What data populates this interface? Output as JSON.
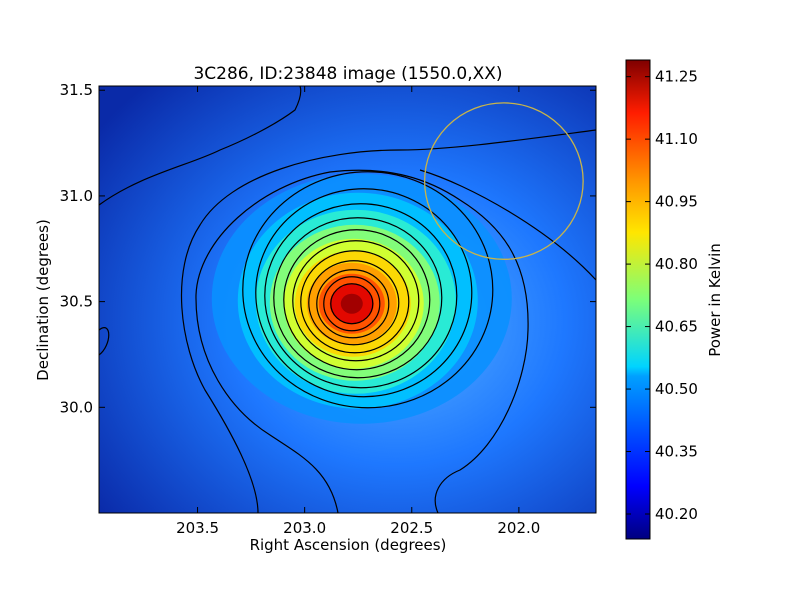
{
  "chart_data": {
    "type": "heatmap",
    "title": "3C286, ID:23848 image (1550.0,XX)",
    "xlabel": "Right Ascension (degrees)",
    "ylabel": "Declination (degrees)",
    "xlim": [
      203.96,
      201.64
    ],
    "ylim": [
      29.5,
      31.52
    ],
    "x_ticks": [
      {
        "value": 203.5,
        "label": "203.5"
      },
      {
        "value": 203.0,
        "label": "203.0"
      },
      {
        "value": 202.5,
        "label": "202.5"
      },
      {
        "value": 202.0,
        "label": "202.0"
      }
    ],
    "y_ticks": [
      {
        "value": 30.0,
        "label": "30.0"
      },
      {
        "value": 30.5,
        "label": "30.5"
      },
      {
        "value": 31.0,
        "label": "31.0"
      },
      {
        "value": 31.5,
        "label": "31.5"
      }
    ],
    "colorbar": {
      "label": "Power in Kelvin",
      "range": [
        40.14,
        41.29
      ],
      "ticks": [
        {
          "value": 40.2,
          "label": "40.20"
        },
        {
          "value": 40.35,
          "label": "40.35"
        },
        {
          "value": 40.5,
          "label": "40.50"
        },
        {
          "value": 40.65,
          "label": "40.65"
        },
        {
          "value": 40.8,
          "label": "40.80"
        },
        {
          "value": 40.95,
          "label": "40.95"
        },
        {
          "value": 41.1,
          "label": "41.10"
        },
        {
          "value": 41.25,
          "label": "41.25"
        }
      ]
    },
    "peak": {
      "ra": 202.78,
      "dec": 30.49,
      "value": 41.27
    },
    "beam_circle": {
      "ra": 202.07,
      "dec": 31.07,
      "radius_deg": 0.37,
      "color": "#c8b44a"
    },
    "contour_color": "#000000"
  }
}
